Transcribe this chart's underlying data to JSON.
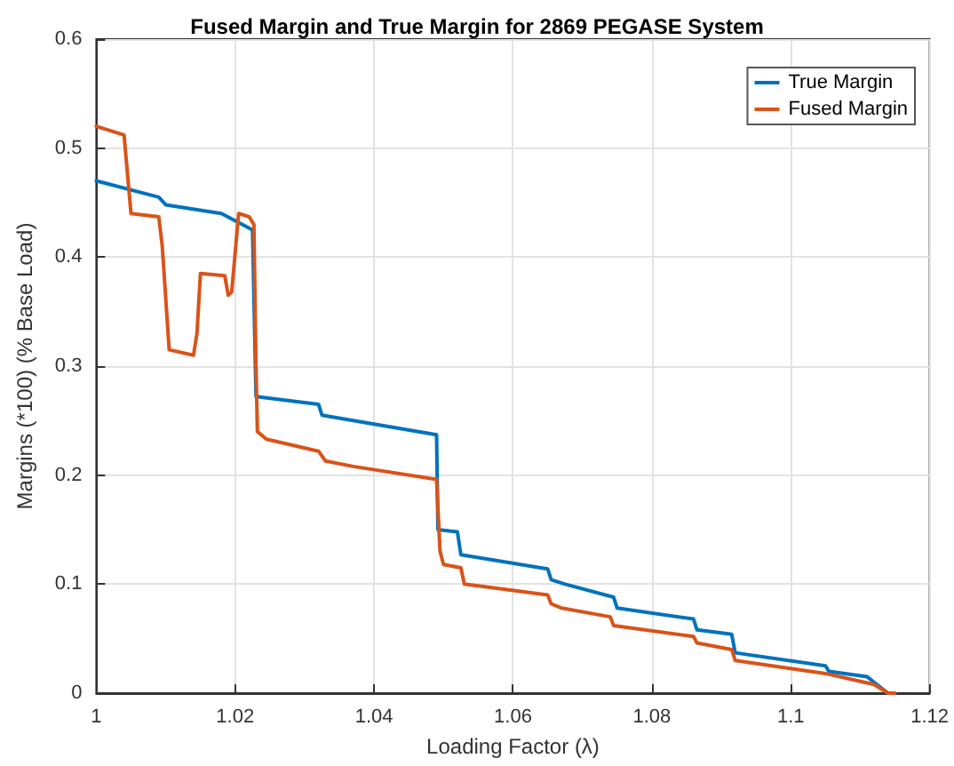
{
  "chart_data": {
    "type": "line",
    "title": "Fused Margin and True Margin for 2869 PEGASE System",
    "xlabel": "Loading Factor (λ)",
    "ylabel": "Margins (*100) (% Base Load)",
    "xlim": [
      1,
      1.12
    ],
    "xticks": [
      1,
      1.02,
      1.04,
      1.06,
      1.08,
      1.1,
      1.12
    ],
    "ylim": [
      0,
      0.6
    ],
    "yticks": [
      0,
      0.1,
      0.2,
      0.3,
      0.4,
      0.5,
      0.6
    ],
    "grid": true,
    "legend": "top right",
    "marker": "none",
    "line_style": "solid",
    "series": [
      {
        "name": "True Margin",
        "color": "#0072bd",
        "x": [
          1,
          1.009,
          1.01,
          1.018,
          1.0225,
          1.023,
          1.032,
          1.0325,
          1.049,
          1.0492,
          1.052,
          1.0525,
          1.065,
          1.0655,
          1.0675,
          1.0745,
          1.075,
          1.086,
          1.0865,
          1.0915,
          1.092,
          1.105,
          1.1055,
          1.111,
          1.112,
          1.114
        ],
        "values": [
          0.47,
          0.455,
          0.448,
          0.44,
          0.425,
          0.272,
          0.265,
          0.255,
          0.237,
          0.15,
          0.148,
          0.127,
          0.114,
          0.104,
          0.1,
          0.088,
          0.078,
          0.068,
          0.058,
          0.054,
          0.037,
          0.025,
          0.02,
          0.015,
          0.01,
          0
        ]
      },
      {
        "name": "Fused Margin",
        "color": "#d95319",
        "x": [
          1,
          1.004,
          1.005,
          1.009,
          1.0095,
          1.0105,
          1.014,
          1.0145,
          1.015,
          1.0185,
          1.019,
          1.0195,
          1.0205,
          1.022,
          1.0227,
          1.023,
          1.0232,
          1.0245,
          1.032,
          1.033,
          1.037,
          1.049,
          1.0495,
          1.05,
          1.0525,
          1.053,
          1.065,
          1.0655,
          1.067,
          1.074,
          1.0745,
          1.086,
          1.0865,
          1.0915,
          1.092,
          1.105,
          1.112,
          1.114,
          1.115
        ],
        "values": [
          0.52,
          0.512,
          0.44,
          0.437,
          0.41,
          0.315,
          0.31,
          0.33,
          0.385,
          0.383,
          0.365,
          0.368,
          0.44,
          0.437,
          0.43,
          0.3,
          0.24,
          0.233,
          0.222,
          0.213,
          0.208,
          0.196,
          0.13,
          0.118,
          0.115,
          0.1,
          0.09,
          0.082,
          0.078,
          0.07,
          0.062,
          0.052,
          0.046,
          0.04,
          0.03,
          0.018,
          0.008,
          0,
          0
        ]
      }
    ]
  }
}
